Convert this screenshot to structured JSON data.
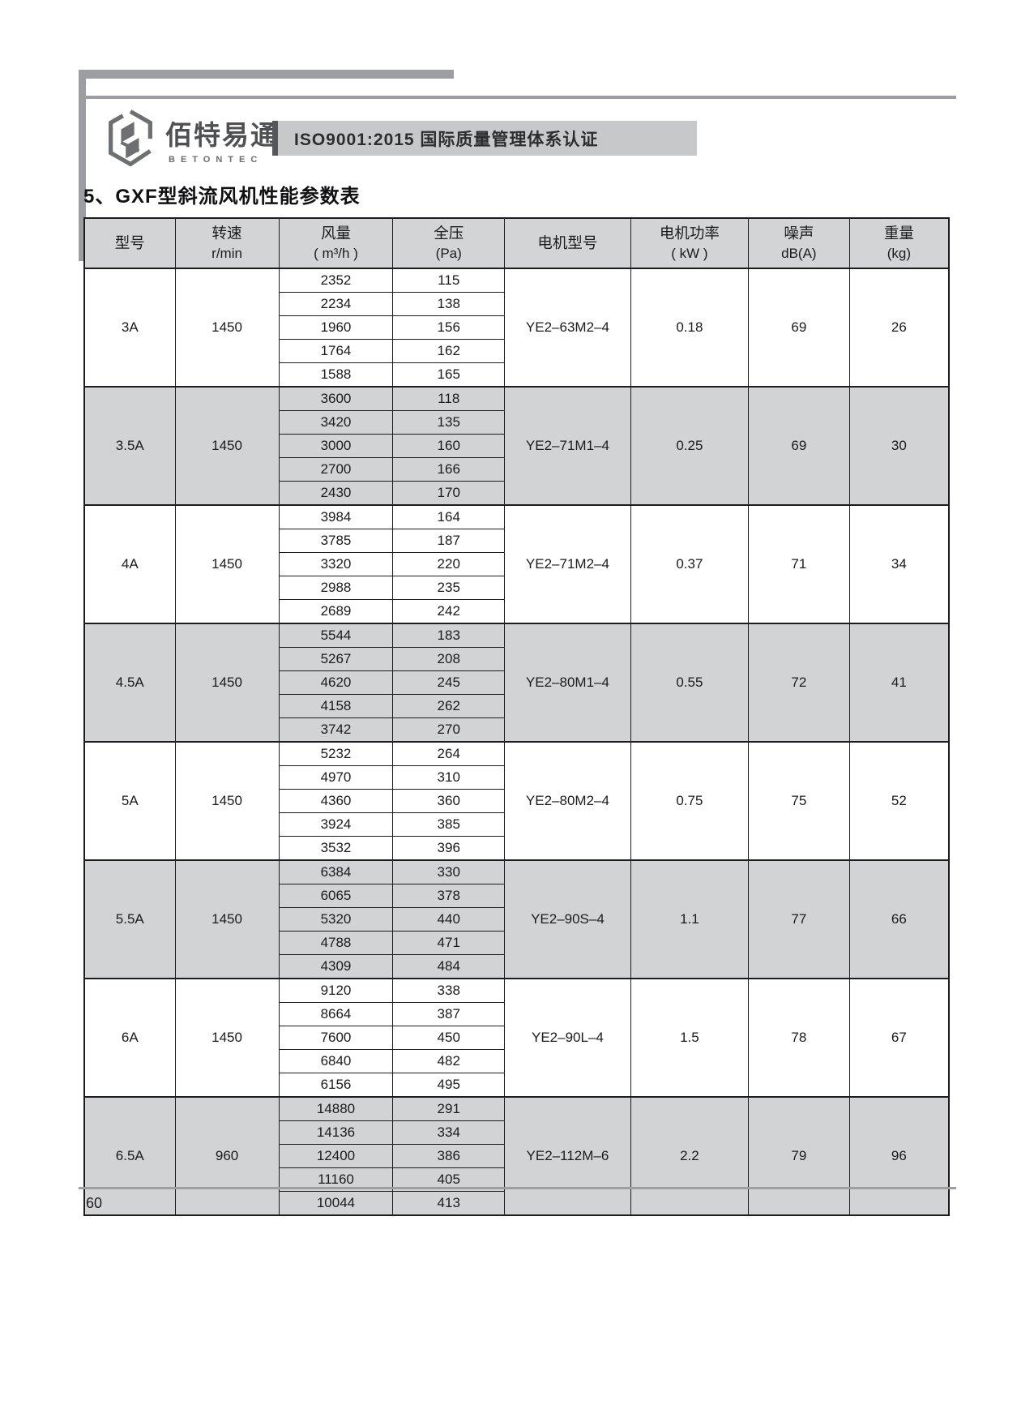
{
  "header": {
    "logo_text": "佰特易通",
    "logo_subtext": "BETONTEC",
    "banner": "ISO9001:2015 国际质量管理体系认证"
  },
  "page": {
    "title": "5、GXF型斜流风机性能参数表",
    "number": "60"
  },
  "accent_colors": {
    "frame_gray": "#9d9ea1",
    "header_fill": "#d3d4d6",
    "shaded_row_fill": "#d2d3d5",
    "banner_fill": "#c7c8ca",
    "banner_accent": "#55565a"
  },
  "table": {
    "columns": [
      {
        "line1": "型号",
        "line2": ""
      },
      {
        "line1": "转速",
        "line2": "r/min"
      },
      {
        "line1": "风量",
        "line2": "( m³/h )"
      },
      {
        "line1": "全压",
        "line2": "(Pa)"
      },
      {
        "line1": "电机型号",
        "line2": ""
      },
      {
        "line1": "电机功率",
        "line2": "( kW )"
      },
      {
        "line1": "噪声",
        "line2": "dB(A)"
      },
      {
        "line1": "重量",
        "line2": "(kg)"
      }
    ],
    "rows": [
      {
        "model": "3A",
        "speed": "1450",
        "flow": [
          "2352",
          "2234",
          "1960",
          "1764",
          "1588"
        ],
        "pressure": [
          "115",
          "138",
          "156",
          "162",
          "165"
        ],
        "motor": "YE2–63M2–4",
        "power": "0.18",
        "noise": "69",
        "weight": "26",
        "shaded": false
      },
      {
        "model": "3.5A",
        "speed": "1450",
        "flow": [
          "3600",
          "3420",
          "3000",
          "2700",
          "2430"
        ],
        "pressure": [
          "118",
          "135",
          "160",
          "166",
          "170"
        ],
        "motor": "YE2–71M1–4",
        "power": "0.25",
        "noise": "69",
        "weight": "30",
        "shaded": true
      },
      {
        "model": "4A",
        "speed": "1450",
        "flow": [
          "3984",
          "3785",
          "3320",
          "2988",
          "2689"
        ],
        "pressure": [
          "164",
          "187",
          "220",
          "235",
          "242"
        ],
        "motor": "YE2–71M2–4",
        "power": "0.37",
        "noise": "71",
        "weight": "34",
        "shaded": false
      },
      {
        "model": "4.5A",
        "speed": "1450",
        "flow": [
          "5544",
          "5267",
          "4620",
          "4158",
          "3742"
        ],
        "pressure": [
          "183",
          "208",
          "245",
          "262",
          "270"
        ],
        "motor": "YE2–80M1–4",
        "power": "0.55",
        "noise": "72",
        "weight": "41",
        "shaded": true
      },
      {
        "model": "5A",
        "speed": "1450",
        "flow": [
          "5232",
          "4970",
          "4360",
          "3924",
          "3532"
        ],
        "pressure": [
          "264",
          "310",
          "360",
          "385",
          "396"
        ],
        "motor": "YE2–80M2–4",
        "power": "0.75",
        "noise": "75",
        "weight": "52",
        "shaded": false
      },
      {
        "model": "5.5A",
        "speed": "1450",
        "flow": [
          "6384",
          "6065",
          "5320",
          "4788",
          "4309"
        ],
        "pressure": [
          "330",
          "378",
          "440",
          "471",
          "484"
        ],
        "motor": "YE2–90S–4",
        "power": "1.1",
        "noise": "77",
        "weight": "66",
        "shaded": true
      },
      {
        "model": "6A",
        "speed": "1450",
        "flow": [
          "9120",
          "8664",
          "7600",
          "6840",
          "6156"
        ],
        "pressure": [
          "338",
          "387",
          "450",
          "482",
          "495"
        ],
        "motor": "YE2–90L–4",
        "power": "1.5",
        "noise": "78",
        "weight": "67",
        "shaded": false
      },
      {
        "model": "6.5A",
        "speed": "960",
        "flow": [
          "14880",
          "14136",
          "12400",
          "11160",
          "10044"
        ],
        "pressure": [
          "291",
          "334",
          "386",
          "405",
          "413"
        ],
        "motor": "YE2–112M–6",
        "power": "2.2",
        "noise": "79",
        "weight": "96",
        "shaded": true
      }
    ]
  }
}
